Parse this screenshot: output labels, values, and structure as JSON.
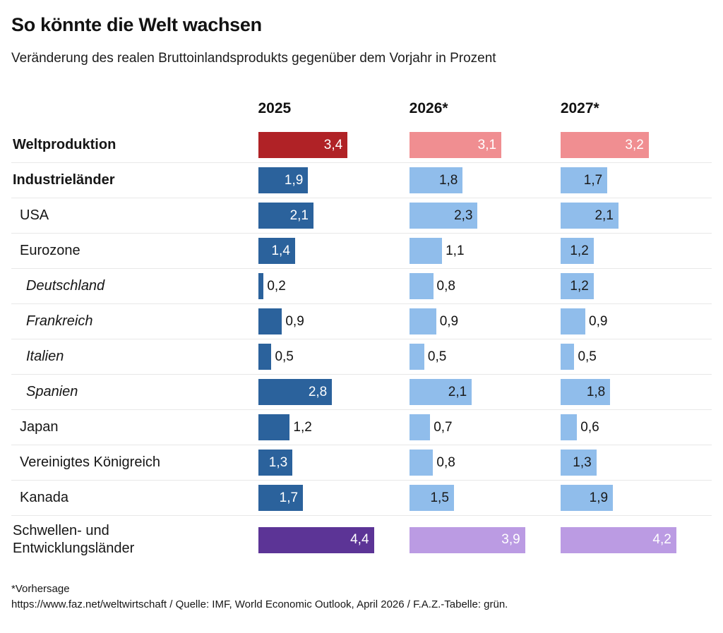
{
  "header": {
    "title": "So könnte die Welt wachsen",
    "subtitle": "Veränderung des realen Bruttoinlandsprodukts gegenüber dem Vorjahr in Prozent"
  },
  "columns": [
    "2025",
    "2026*",
    "2027*"
  ],
  "colors": {
    "red": {
      "dark": "#B02226",
      "light": "#F08E91"
    },
    "blue": {
      "dark": "#2B629C",
      "light": "#90BDEB"
    },
    "purple": {
      "dark": "#5C3496",
      "light": "#BB9BE3"
    },
    "inside_text_on_light_blue": "#1a1a1a",
    "inside_text_default": "#ffffff",
    "separator": "#e8e8e8"
  },
  "rows": [
    {
      "label": "Weltproduktion",
      "style": "bold",
      "indent": 0,
      "palette": "red",
      "tall": false,
      "values": [
        3.4,
        3.1,
        3.2
      ]
    },
    {
      "label": "Industrieländer",
      "style": "bold",
      "indent": 0,
      "palette": "blue",
      "tall": false,
      "values": [
        1.9,
        1.8,
        1.7
      ]
    },
    {
      "label": "USA",
      "style": "plain",
      "indent": 1,
      "palette": "blue",
      "tall": false,
      "values": [
        2.1,
        2.3,
        2.1
      ]
    },
    {
      "label": "Eurozone",
      "style": "plain",
      "indent": 1,
      "palette": "blue",
      "tall": false,
      "values": [
        1.4,
        1.1,
        1.2
      ]
    },
    {
      "label": "Deutschland",
      "style": "italic",
      "indent": 2,
      "palette": "blue",
      "tall": false,
      "values": [
        0.2,
        0.8,
        1.2
      ]
    },
    {
      "label": "Frankreich",
      "style": "italic",
      "indent": 2,
      "palette": "blue",
      "tall": false,
      "values": [
        0.9,
        0.9,
        0.9
      ]
    },
    {
      "label": "Italien",
      "style": "italic",
      "indent": 2,
      "palette": "blue",
      "tall": false,
      "values": [
        0.5,
        0.5,
        0.5
      ]
    },
    {
      "label": "Spanien",
      "style": "italic",
      "indent": 2,
      "palette": "blue",
      "tall": false,
      "values": [
        2.8,
        2.1,
        1.8
      ]
    },
    {
      "label": "Japan",
      "style": "plain",
      "indent": 1,
      "palette": "blue",
      "tall": false,
      "values": [
        1.2,
        0.7,
        0.6
      ]
    },
    {
      "label": "Vereinigtes Königreich",
      "style": "plain",
      "indent": 1,
      "palette": "blue",
      "tall": false,
      "values": [
        1.3,
        0.8,
        1.3
      ]
    },
    {
      "label": "Kanada",
      "style": "plain",
      "indent": 1,
      "palette": "blue",
      "tall": false,
      "values": [
        1.7,
        1.5,
        1.9
      ]
    },
    {
      "label": "Schwellen- und\nEntwicklungsländer",
      "style": "plain",
      "indent": 0,
      "palette": "purple",
      "tall": true,
      "values": [
        4.4,
        3.9,
        4.2
      ]
    }
  ],
  "chart_data": {
    "type": "bar",
    "title": "So könnte die Welt wachsen",
    "subtitle": "Veränderung des realen Bruttoinlandsprodukts gegenüber dem Vorjahr in Prozent",
    "unit": "percent",
    "value_format": "decimal-comma",
    "categories": [
      "Weltproduktion",
      "Industrieländer",
      "USA",
      "Eurozone",
      "Deutschland",
      "Frankreich",
      "Italien",
      "Spanien",
      "Japan",
      "Vereinigtes Königreich",
      "Kanada",
      "Schwellen- und Entwicklungsländer"
    ],
    "series": [
      {
        "name": "2025",
        "values": [
          3.4,
          1.9,
          2.1,
          1.4,
          0.2,
          0.9,
          0.5,
          2.8,
          1.2,
          1.3,
          1.7,
          4.4
        ]
      },
      {
        "name": "2026*",
        "values": [
          3.1,
          1.8,
          2.3,
          1.1,
          0.8,
          0.9,
          0.5,
          2.1,
          0.7,
          0.8,
          1.5,
          3.9
        ]
      },
      {
        "name": "2027*",
        "values": [
          3.2,
          1.7,
          2.1,
          1.2,
          1.2,
          0.9,
          0.5,
          1.8,
          0.6,
          1.3,
          1.9,
          4.2
        ]
      }
    ],
    "layout": {
      "orientation": "horizontal",
      "bars_normalized_per_column": true,
      "grid": false,
      "legend": false
    }
  },
  "footer": {
    "note": "*Vorhersage",
    "source": "https://www.faz.net/weltwirtschaft / Quelle: IMF, World Economic Outlook, April 2026 / F.A.Z.-Tabelle: grün."
  }
}
